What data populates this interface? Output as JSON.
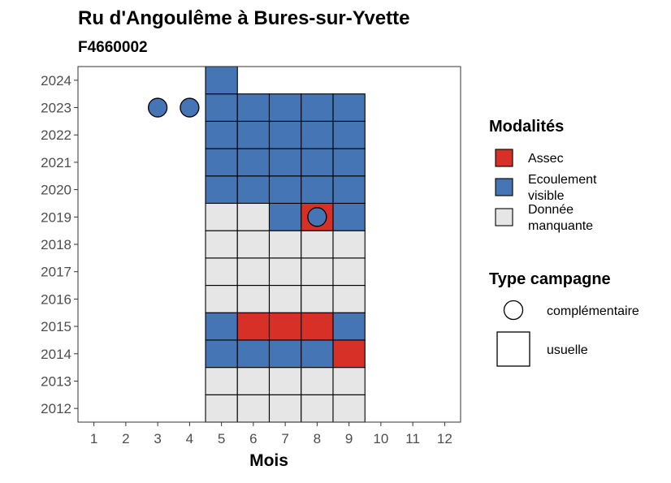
{
  "chart_data": {
    "type": "heatmap",
    "title": "Ru d'Angoulême à Bures-sur-Yvette",
    "subtitle": "F4660002",
    "xlabel": "Mois",
    "ylabel": "",
    "x_ticks": [
      "1",
      "2",
      "3",
      "4",
      "5",
      "6",
      "7",
      "8",
      "9",
      "10",
      "11",
      "12"
    ],
    "y_ticks": [
      "2012",
      "2013",
      "2014",
      "2015",
      "2016",
      "2017",
      "2018",
      "2019",
      "2020",
      "2021",
      "2022",
      "2023",
      "2024"
    ],
    "xlim": [
      0.5,
      12.5
    ],
    "ylim": [
      2011.5,
      2024.5
    ],
    "colors": {
      "Assec": "#d73027",
      "Ecoulement visible": "#4575b4",
      "Donnée manquante": "#e6e6e6"
    },
    "cells": [
      {
        "year": 2012,
        "month": 5,
        "modalite": "Donnée manquante"
      },
      {
        "year": 2012,
        "month": 6,
        "modalite": "Donnée manquante"
      },
      {
        "year": 2012,
        "month": 7,
        "modalite": "Donnée manquante"
      },
      {
        "year": 2012,
        "month": 8,
        "modalite": "Donnée manquante"
      },
      {
        "year": 2012,
        "month": 9,
        "modalite": "Donnée manquante"
      },
      {
        "year": 2013,
        "month": 5,
        "modalite": "Donnée manquante"
      },
      {
        "year": 2013,
        "month": 6,
        "modalite": "Donnée manquante"
      },
      {
        "year": 2013,
        "month": 7,
        "modalite": "Donnée manquante"
      },
      {
        "year": 2013,
        "month": 8,
        "modalite": "Donnée manquante"
      },
      {
        "year": 2013,
        "month": 9,
        "modalite": "Donnée manquante"
      },
      {
        "year": 2014,
        "month": 5,
        "modalite": "Ecoulement visible"
      },
      {
        "year": 2014,
        "month": 6,
        "modalite": "Ecoulement visible"
      },
      {
        "year": 2014,
        "month": 7,
        "modalite": "Ecoulement visible"
      },
      {
        "year": 2014,
        "month": 8,
        "modalite": "Ecoulement visible"
      },
      {
        "year": 2014,
        "month": 9,
        "modalite": "Assec"
      },
      {
        "year": 2015,
        "month": 5,
        "modalite": "Ecoulement visible"
      },
      {
        "year": 2015,
        "month": 6,
        "modalite": "Assec"
      },
      {
        "year": 2015,
        "month": 7,
        "modalite": "Assec"
      },
      {
        "year": 2015,
        "month": 8,
        "modalite": "Assec"
      },
      {
        "year": 2015,
        "month": 9,
        "modalite": "Ecoulement visible"
      },
      {
        "year": 2016,
        "month": 5,
        "modalite": "Donnée manquante"
      },
      {
        "year": 2016,
        "month": 6,
        "modalite": "Donnée manquante"
      },
      {
        "year": 2016,
        "month": 7,
        "modalite": "Donnée manquante"
      },
      {
        "year": 2016,
        "month": 8,
        "modalite": "Donnée manquante"
      },
      {
        "year": 2016,
        "month": 9,
        "modalite": "Donnée manquante"
      },
      {
        "year": 2017,
        "month": 5,
        "modalite": "Donnée manquante"
      },
      {
        "year": 2017,
        "month": 6,
        "modalite": "Donnée manquante"
      },
      {
        "year": 2017,
        "month": 7,
        "modalite": "Donnée manquante"
      },
      {
        "year": 2017,
        "month": 8,
        "modalite": "Donnée manquante"
      },
      {
        "year": 2017,
        "month": 9,
        "modalite": "Donnée manquante"
      },
      {
        "year": 2018,
        "month": 5,
        "modalite": "Donnée manquante"
      },
      {
        "year": 2018,
        "month": 6,
        "modalite": "Donnée manquante"
      },
      {
        "year": 2018,
        "month": 7,
        "modalite": "Donnée manquante"
      },
      {
        "year": 2018,
        "month": 8,
        "modalite": "Donnée manquante"
      },
      {
        "year": 2018,
        "month": 9,
        "modalite": "Donnée manquante"
      },
      {
        "year": 2019,
        "month": 5,
        "modalite": "Donnée manquante"
      },
      {
        "year": 2019,
        "month": 6,
        "modalite": "Donnée manquante"
      },
      {
        "year": 2019,
        "month": 7,
        "modalite": "Ecoulement visible"
      },
      {
        "year": 2019,
        "month": 8,
        "modalite": "Assec"
      },
      {
        "year": 2019,
        "month": 9,
        "modalite": "Ecoulement visible"
      },
      {
        "year": 2020,
        "month": 5,
        "modalite": "Ecoulement visible"
      },
      {
        "year": 2020,
        "month": 6,
        "modalite": "Ecoulement visible"
      },
      {
        "year": 2020,
        "month": 7,
        "modalite": "Ecoulement visible"
      },
      {
        "year": 2020,
        "month": 8,
        "modalite": "Ecoulement visible"
      },
      {
        "year": 2020,
        "month": 9,
        "modalite": "Ecoulement visible"
      },
      {
        "year": 2021,
        "month": 5,
        "modalite": "Ecoulement visible"
      },
      {
        "year": 2021,
        "month": 6,
        "modalite": "Ecoulement visible"
      },
      {
        "year": 2021,
        "month": 7,
        "modalite": "Ecoulement visible"
      },
      {
        "year": 2021,
        "month": 8,
        "modalite": "Ecoulement visible"
      },
      {
        "year": 2021,
        "month": 9,
        "modalite": "Ecoulement visible"
      },
      {
        "year": 2022,
        "month": 5,
        "modalite": "Ecoulement visible"
      },
      {
        "year": 2022,
        "month": 6,
        "modalite": "Ecoulement visible"
      },
      {
        "year": 2022,
        "month": 7,
        "modalite": "Ecoulement visible"
      },
      {
        "year": 2022,
        "month": 8,
        "modalite": "Ecoulement visible"
      },
      {
        "year": 2022,
        "month": 9,
        "modalite": "Ecoulement visible"
      },
      {
        "year": 2023,
        "month": 5,
        "modalite": "Ecoulement visible"
      },
      {
        "year": 2023,
        "month": 6,
        "modalite": "Ecoulement visible"
      },
      {
        "year": 2023,
        "month": 7,
        "modalite": "Ecoulement visible"
      },
      {
        "year": 2023,
        "month": 8,
        "modalite": "Ecoulement visible"
      },
      {
        "year": 2023,
        "month": 9,
        "modalite": "Ecoulement visible"
      },
      {
        "year": 2024,
        "month": 5,
        "modalite": "Ecoulement visible"
      }
    ],
    "points": [
      {
        "year": 2023,
        "month": 3,
        "modalite": "Ecoulement visible"
      },
      {
        "year": 2023,
        "month": 4,
        "modalite": "Ecoulement visible"
      },
      {
        "year": 2019,
        "month": 8,
        "modalite": "Ecoulement visible"
      }
    ],
    "legend": {
      "placement": "right",
      "modalites_title": "Modalités",
      "modalites": [
        {
          "label_lines": [
            "Assec"
          ],
          "color": "#d73027"
        },
        {
          "label_lines": [
            "Ecoulement",
            "visible"
          ],
          "color": "#4575b4"
        },
        {
          "label_lines": [
            "Donnée",
            "manquante"
          ],
          "color": "#e6e6e6"
        }
      ],
      "type_title": "Type campagne",
      "types": [
        {
          "label": "complémentaire",
          "shape": "circle"
        },
        {
          "label": "usuelle",
          "shape": "square"
        }
      ]
    },
    "grid": false
  }
}
